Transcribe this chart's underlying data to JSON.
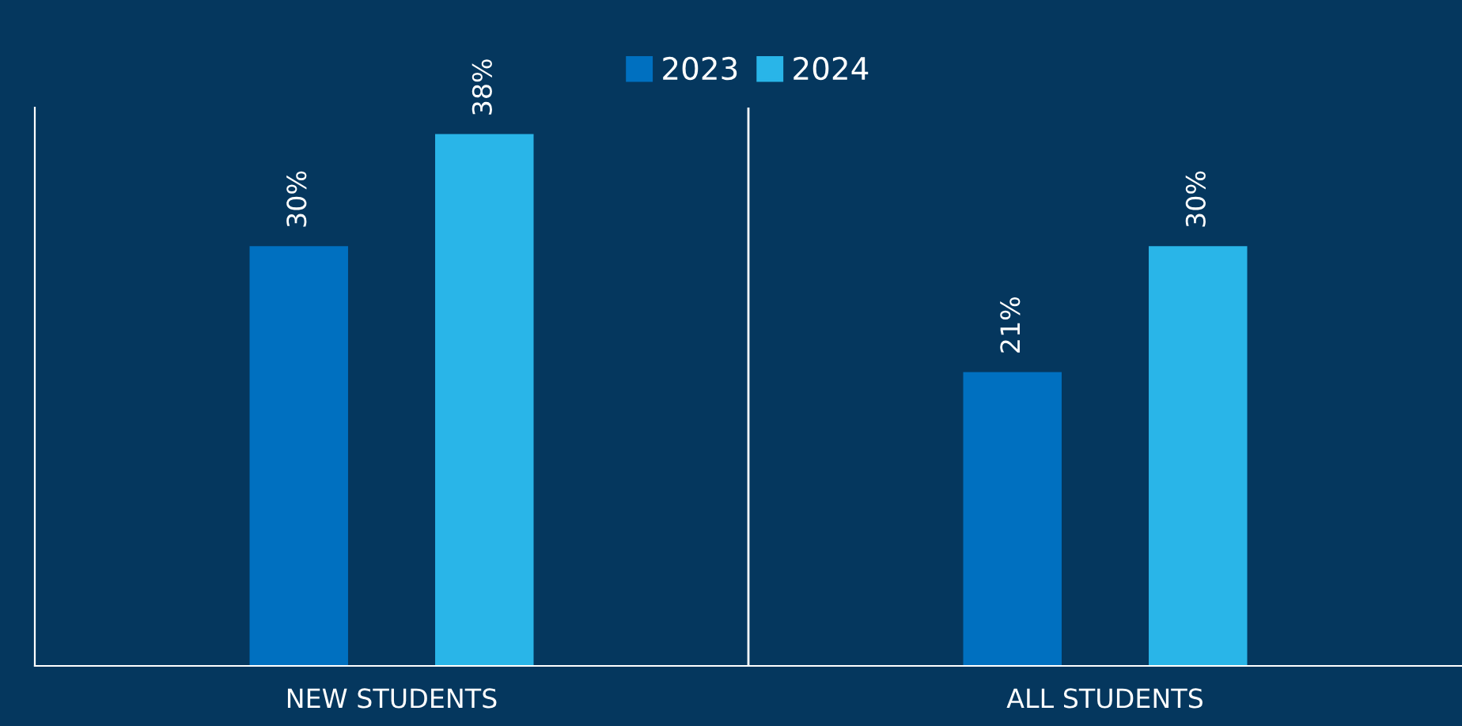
{
  "chart_data": {
    "type": "bar",
    "categories": [
      "NEW STUDENTS",
      "ALL STUDENTS"
    ],
    "series": [
      {
        "name": "2023",
        "color": "#0070c0",
        "values": [
          30,
          21
        ],
        "value_labels": [
          "30%",
          "21%"
        ]
      },
      {
        "name": "2024",
        "color": "#29b5e8",
        "values": [
          38,
          30
        ],
        "value_labels": [
          "38%",
          "30%"
        ]
      }
    ],
    "legend": "top",
    "grid": false
  }
}
